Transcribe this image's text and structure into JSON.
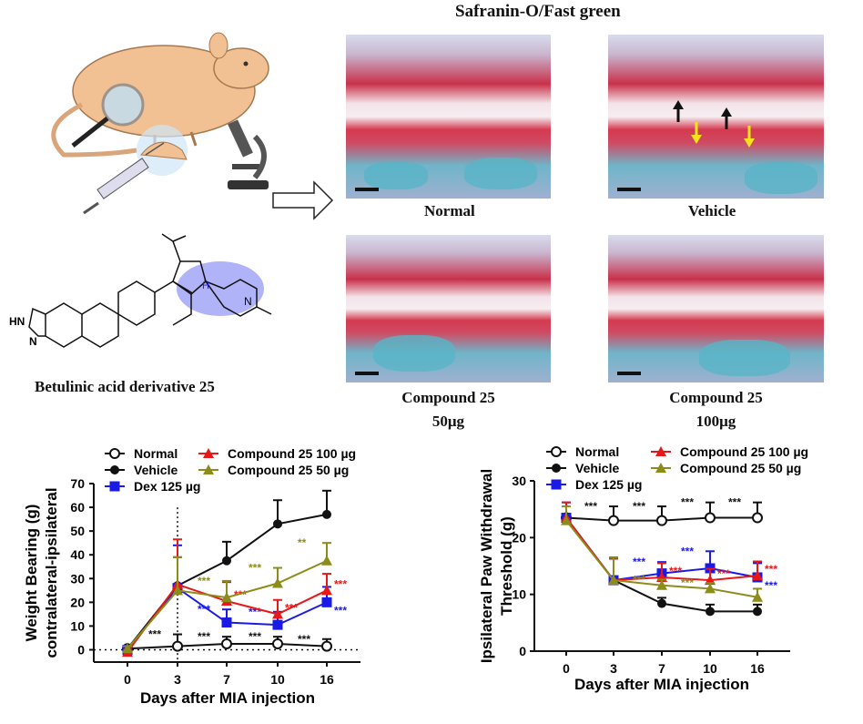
{
  "histology": {
    "title": "Safranin-O/Fast green",
    "panels": [
      {
        "label": "Normal",
        "sublabel": ""
      },
      {
        "label": "Vehicle",
        "sublabel": ""
      },
      {
        "label": "Compound 25",
        "sublabel": "50μg"
      },
      {
        "label": "Compound 25",
        "sublabel": "100μg"
      }
    ],
    "arrow_colors": {
      "black": "#111111",
      "yellow": "#f5e31a"
    }
  },
  "compound": {
    "caption": "Betulinic acid derivative 25",
    "atom_labels": [
      "HN",
      "N",
      "N",
      "H",
      "N"
    ],
    "highlight_color": "#7b7ff0"
  },
  "icons": [
    "rat-icon",
    "magnifier-icon",
    "syringe-icon",
    "microscope-icon",
    "arrow-right-icon"
  ],
  "chart_data": [
    {
      "type": "line",
      "xlabel": "Days after MIA injection",
      "ylabel": "Weight Bearing (g) contralateral-ipsilateral",
      "ylabel_lines": [
        "Weight Bearing (g)",
        "contralateral-ipsilateral"
      ],
      "categories": [
        "0",
        "3",
        "7",
        "10",
        "16"
      ],
      "ylim": [
        0,
        70
      ],
      "yticks": [
        0,
        10,
        20,
        30,
        40,
        50,
        60,
        70
      ],
      "legend": "top",
      "reference_lines": {
        "y": 0,
        "x": "3"
      },
      "series": [
        {
          "name": "Normal",
          "color": "#111111",
          "marker": "open-circle",
          "values": [
            0.5,
            1.5,
            2.5,
            2.5,
            1.5
          ],
          "error": [
            1,
            5,
            3,
            3,
            3
          ],
          "annotations": [
            "",
            "***",
            "***",
            "***",
            "***"
          ]
        },
        {
          "name": "Vehicle",
          "color": "#111111",
          "marker": "circle",
          "values": [
            0.5,
            27,
            37.5,
            53,
            57
          ],
          "error": [
            1,
            12,
            8,
            10,
            10
          ],
          "annotations": [
            "",
            "",
            "",
            "",
            ""
          ]
        },
        {
          "name": "Dex 125 µg",
          "color": "#1a1ae6",
          "marker": "square",
          "values": [
            0,
            26,
            11.5,
            10.5,
            20
          ],
          "error": [
            1,
            18,
            5.5,
            5.5,
            6.5
          ],
          "annotations": [
            "",
            "",
            "***",
            "***",
            "***"
          ]
        },
        {
          "name": "Compound 25 100 µg",
          "color": "#e81818",
          "marker": "triangle",
          "values": [
            -1,
            27.5,
            20.5,
            15,
            25
          ],
          "error": [
            1,
            19,
            8,
            6,
            7
          ],
          "annotations": [
            "",
            "",
            "***",
            "***",
            "***"
          ]
        },
        {
          "name": "Compound 25 50 µg",
          "color": "#8c8c1a",
          "marker": "triangle",
          "values": [
            0.5,
            25,
            22,
            28,
            37.5
          ],
          "error": [
            1,
            14,
            7,
            6.5,
            7.5
          ],
          "annotations": [
            "",
            "",
            "***",
            "***",
            "**"
          ]
        }
      ]
    },
    {
      "type": "line",
      "xlabel": "Days after MIA injection",
      "ylabel": "Ipsilateral Paw Withdrawal Threshold (g)",
      "ylabel_lines": [
        "Ipsilateral Paw Withdrawal",
        "Threshold (g)"
      ],
      "categories": [
        "0",
        "3",
        "7",
        "10",
        "16"
      ],
      "ylim": [
        0,
        30
      ],
      "yticks": [
        0,
        10,
        20,
        30
      ],
      "legend": "top",
      "series": [
        {
          "name": "Normal",
          "color": "#111111",
          "marker": "open-circle",
          "values": [
            23.5,
            23,
            23,
            23.5,
            23.5
          ],
          "error": [
            0.5,
            2.5,
            2.5,
            2.7,
            2.7
          ],
          "annotations": [
            "",
            "***",
            "***",
            "***",
            "***"
          ]
        },
        {
          "name": "Vehicle",
          "color": "#111111",
          "marker": "circle",
          "values": [
            23.5,
            12.5,
            8.4,
            7,
            7
          ],
          "error": [
            0.5,
            4,
            1,
            1.2,
            1.2
          ],
          "annotations": [
            "",
            "",
            "",
            "",
            ""
          ]
        },
        {
          "name": "Dex 125 µg",
          "color": "#1a1ae6",
          "marker": "square",
          "values": [
            23.5,
            12.5,
            13.7,
            14.6,
            13
          ],
          "error": [
            2.7,
            3.8,
            2,
            3,
            2.5
          ],
          "annotations": [
            "",
            "",
            "***",
            "***",
            "***"
          ]
        },
        {
          "name": "Compound 25 100 µg",
          "color": "#e81818",
          "marker": "triangle",
          "values": [
            23.5,
            12.5,
            13,
            12.5,
            13.3
          ],
          "error": [
            2.7,
            3.8,
            2.5,
            2,
            2.5
          ],
          "annotations": [
            "",
            "",
            "***",
            "***",
            "***"
          ]
        },
        {
          "name": "Compound 25 50 µg",
          "color": "#8c8c1a",
          "marker": "triangle",
          "values": [
            23,
            12.5,
            11.6,
            11,
            9.5
          ],
          "error": [
            2.5,
            4,
            1,
            1,
            1.5
          ],
          "annotations": [
            "",
            "",
            "***",
            "***",
            ""
          ]
        }
      ]
    }
  ]
}
